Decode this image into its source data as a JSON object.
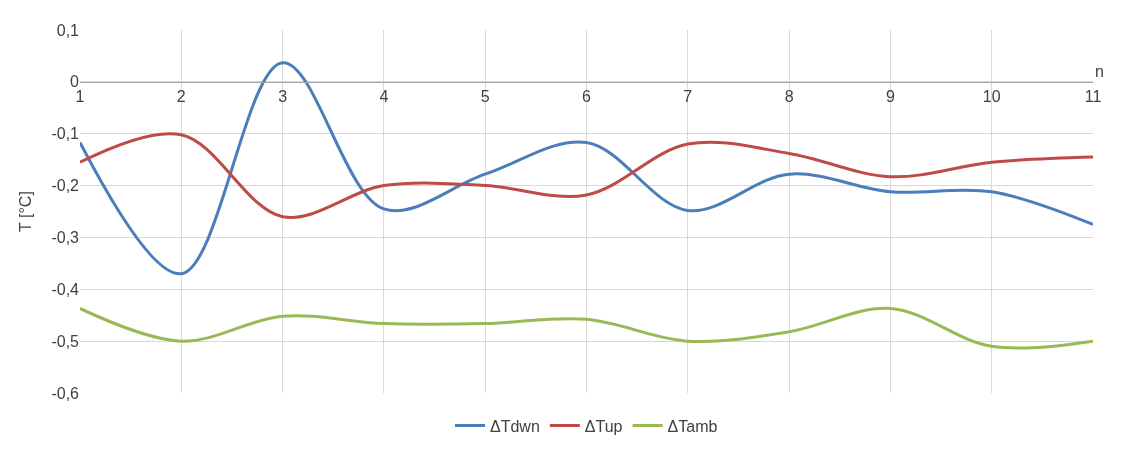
{
  "chart_data": {
    "type": "line",
    "xlabel": "n",
    "ylabel": "T [°C]",
    "x": [
      1,
      2,
      3,
      4,
      5,
      6,
      7,
      8,
      9,
      10,
      11
    ],
    "series": [
      {
        "name": "ΔTdwn",
        "color": "#4a7ebb",
        "values": [
          -0.117,
          -0.37,
          0.037,
          -0.245,
          -0.178,
          -0.117,
          -0.248,
          -0.178,
          -0.212,
          -0.212,
          -0.275
        ]
      },
      {
        "name": "ΔTup",
        "color": "#be4b48",
        "values": [
          -0.155,
          -0.102,
          -0.26,
          -0.2,
          -0.2,
          -0.218,
          -0.12,
          -0.138,
          -0.183,
          -0.155,
          -0.145
        ]
      },
      {
        "name": "ΔTamb",
        "color": "#98b954",
        "values": [
          -0.437,
          -0.5,
          -0.452,
          -0.466,
          -0.466,
          -0.458,
          -0.5,
          -0.482,
          -0.437,
          -0.51,
          -0.5
        ]
      }
    ],
    "xlim": [
      1,
      11
    ],
    "xticks": [
      1,
      2,
      3,
      4,
      5,
      6,
      7,
      8,
      9,
      10,
      11
    ],
    "ylim": [
      -0.6,
      0.1
    ],
    "yticks": [
      {
        "value": -0.6,
        "label": "-0,6"
      },
      {
        "value": -0.5,
        "label": "-0,5"
      },
      {
        "value": -0.4,
        "label": "-0,4"
      },
      {
        "value": -0.3,
        "label": "-0,3"
      },
      {
        "value": -0.2,
        "label": "-0,2"
      },
      {
        "value": -0.1,
        "label": "-0,1"
      },
      {
        "value": 0,
        "label": "0"
      },
      {
        "value": 0.1,
        "label": "0,1"
      }
    ],
    "grid": true,
    "legend": "bottom",
    "marker": "none",
    "line_style": "solid"
  }
}
